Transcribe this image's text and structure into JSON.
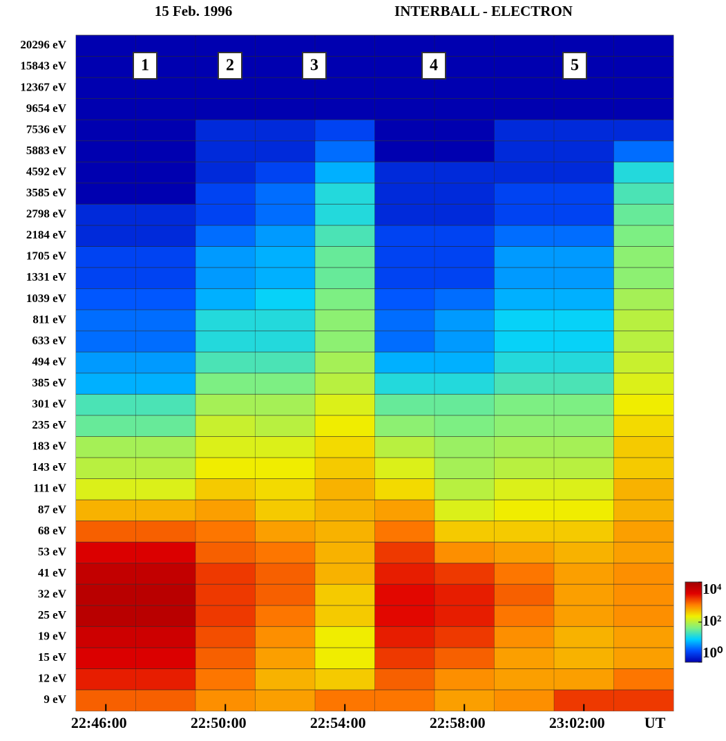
{
  "chart_data": {
    "type": "heatmap",
    "title": "15 Feb. 1996",
    "subtitle": "INTERBALL - ELECTRON",
    "x_unit_label": "UT",
    "categories": [
      "20296 eV",
      "15843 eV",
      "12367 eV",
      "9654 eV",
      "7536 eV",
      "5883 eV",
      "4592 eV",
      "3585 eV",
      "2798 eV",
      "2184 eV",
      "1705 eV",
      "1331 eV",
      "1039 eV",
      "811 eV",
      "633 eV",
      "494 eV",
      "385 eV",
      "301 eV",
      "235 eV",
      "183 eV",
      "143 eV",
      "111 eV",
      "87 eV",
      "68 eV",
      "53 eV",
      "41 eV",
      "32 eV",
      "25 eV",
      "19 eV",
      "15 eV",
      "12 eV",
      "9 eV"
    ],
    "bins": [
      "22:45:00",
      "22:47:00",
      "22:49:00",
      "22:51:00",
      "22:53:00",
      "22:55:00",
      "22:57:00",
      "22:59:00",
      "23:01:00",
      "23:03:00",
      "23:05:00"
    ],
    "xlim": [
      "22:45:00",
      "23:05:00"
    ],
    "xticks": [
      "22:46:00",
      "22:50:00",
      "22:54:00",
      "22:58:00",
      "23:02:00"
    ],
    "values": [
      [
        1,
        1,
        1,
        1,
        1,
        1,
        1,
        1,
        1,
        1
      ],
      [
        1,
        1,
        1,
        1,
        1,
        1,
        1,
        1,
        1,
        1
      ],
      [
        1,
        1,
        1,
        1,
        1,
        1,
        1,
        1,
        1,
        1
      ],
      [
        1,
        1,
        1,
        1,
        1,
        1,
        1,
        1,
        1,
        1
      ],
      [
        1,
        1,
        2,
        2,
        3,
        1,
        1,
        2,
        2,
        2
      ],
      [
        1,
        1,
        2,
        2,
        5,
        1,
        1,
        2,
        2,
        5
      ],
      [
        1,
        1,
        2,
        3,
        10,
        2,
        2,
        2,
        2,
        20
      ],
      [
        1,
        1,
        3,
        5,
        20,
        2,
        2,
        3,
        3,
        30
      ],
      [
        2,
        2,
        3,
        5,
        20,
        2,
        2,
        3,
        3,
        40
      ],
      [
        2,
        2,
        5,
        8,
        30,
        3,
        3,
        5,
        5,
        50
      ],
      [
        3,
        3,
        8,
        10,
        40,
        3,
        3,
        8,
        8,
        60
      ],
      [
        3,
        3,
        8,
        10,
        40,
        3,
        3,
        8,
        8,
        60
      ],
      [
        4,
        4,
        10,
        15,
        50,
        4,
        5,
        10,
        10,
        80
      ],
      [
        5,
        5,
        20,
        20,
        60,
        5,
        8,
        15,
        15,
        100
      ],
      [
        5,
        5,
        20,
        20,
        60,
        5,
        8,
        15,
        15,
        100
      ],
      [
        8,
        8,
        30,
        30,
        80,
        10,
        10,
        20,
        20,
        120
      ],
      [
        10,
        10,
        50,
        50,
        100,
        20,
        20,
        30,
        30,
        150
      ],
      [
        30,
        30,
        80,
        80,
        150,
        40,
        40,
        50,
        50,
        200
      ],
      [
        40,
        40,
        120,
        100,
        200,
        60,
        50,
        60,
        60,
        250
      ],
      [
        80,
        80,
        150,
        150,
        250,
        100,
        70,
        80,
        80,
        300
      ],
      [
        100,
        100,
        200,
        200,
        300,
        150,
        80,
        100,
        100,
        300
      ],
      [
        150,
        150,
        300,
        250,
        400,
        250,
        100,
        150,
        150,
        400
      ],
      [
        400,
        400,
        500,
        300,
        400,
        500,
        150,
        200,
        200,
        400
      ],
      [
        1000,
        1000,
        800,
        500,
        400,
        800,
        300,
        300,
        300,
        500
      ],
      [
        3000,
        3000,
        1000,
        800,
        400,
        1500,
        600,
        500,
        400,
        500
      ],
      [
        5000,
        5000,
        1500,
        1000,
        400,
        2000,
        1500,
        800,
        500,
        600
      ],
      [
        6000,
        6000,
        1500,
        1000,
        300,
        2500,
        2000,
        1000,
        500,
        600
      ],
      [
        6000,
        6000,
        1500,
        800,
        300,
        2500,
        2000,
        800,
        500,
        600
      ],
      [
        4000,
        4000,
        1200,
        600,
        200,
        2000,
        1500,
        600,
        400,
        500
      ],
      [
        3000,
        3000,
        1000,
        500,
        200,
        1500,
        1000,
        500,
        400,
        500
      ],
      [
        2000,
        2000,
        800,
        400,
        300,
        1000,
        600,
        500,
        500,
        800
      ],
      [
        1000,
        1000,
        600,
        500,
        800,
        800,
        500,
        600,
        1500,
        1500
      ]
    ],
    "zlim": [
      1,
      10000
    ],
    "zticks": [
      {
        "value": 1,
        "label": "10⁰"
      },
      {
        "value": 100,
        "label": "10²"
      },
      {
        "value": 10000,
        "label": "10⁴"
      }
    ],
    "log_scale": true,
    "colormap": [
      "#0000b0",
      "#0050ff",
      "#00d0ff",
      "#80f080",
      "#f0f000",
      "#ff8000",
      "#e00000",
      "#a00000"
    ],
    "annotations": [
      "1",
      "2",
      "3",
      "4",
      "5"
    ]
  }
}
